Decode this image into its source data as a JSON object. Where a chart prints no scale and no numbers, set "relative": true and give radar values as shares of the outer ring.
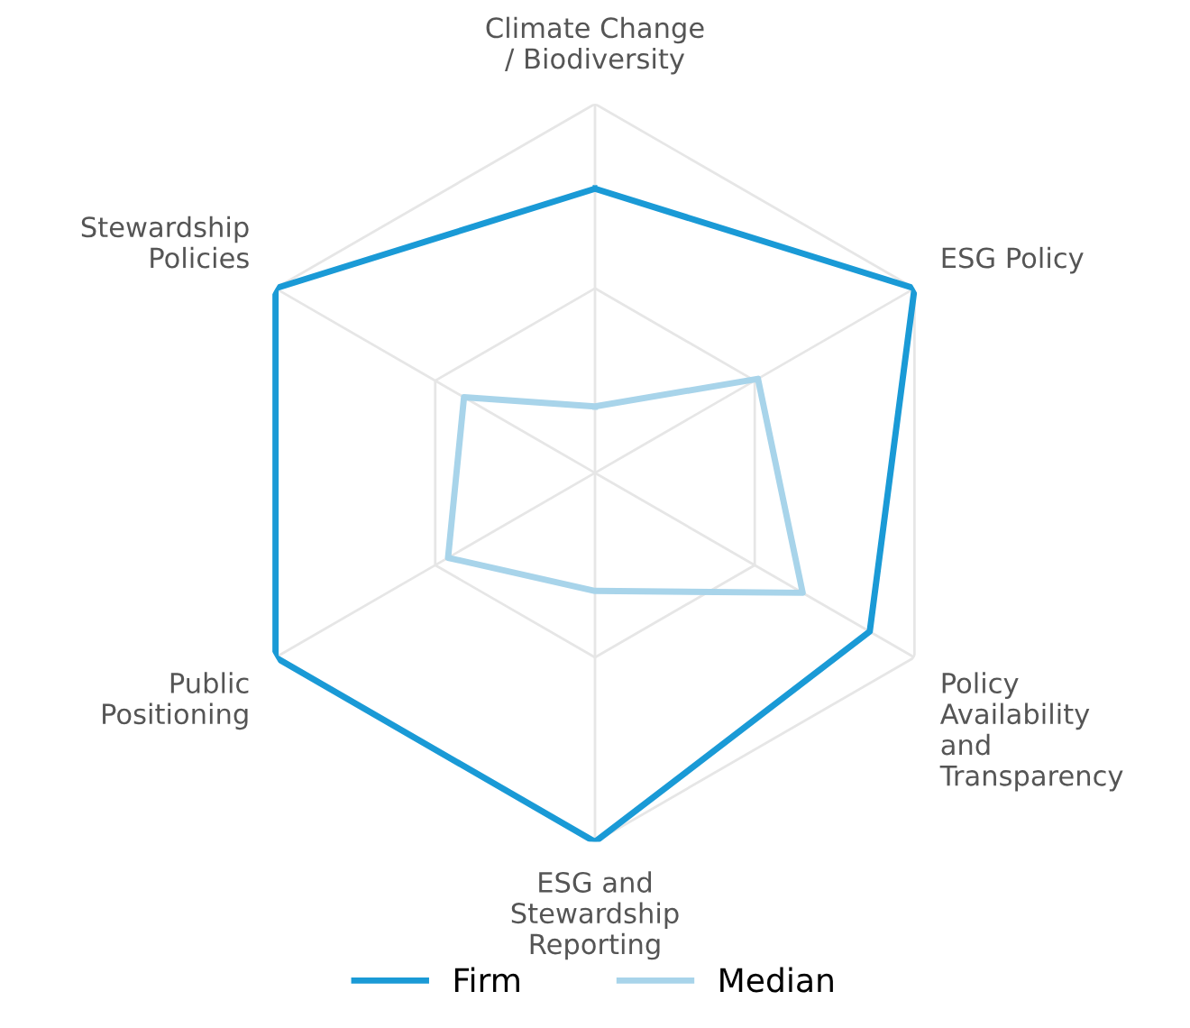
{
  "chart_data": {
    "type": "radar",
    "relative": true,
    "grid": true,
    "legend": "bottom",
    "categories": [
      "Climate Change\n/ Biodiversity",
      "ESG Policy",
      "Policy\nAvailability\nand\nTransparency",
      "ESG and\nStewardship\nReporting",
      "Public\nPositioning",
      "Stewardship\nPolicies"
    ],
    "series": [
      {
        "name": "Firm",
        "color": "#1a9ad6",
        "values": [
          0.77,
          1.0,
          0.86,
          1.0,
          1.0,
          1.0
        ]
      },
      {
        "name": "Median",
        "color": "#a8d4ea",
        "values": [
          0.18,
          0.51,
          0.65,
          0.32,
          0.46,
          0.41
        ]
      }
    ]
  }
}
